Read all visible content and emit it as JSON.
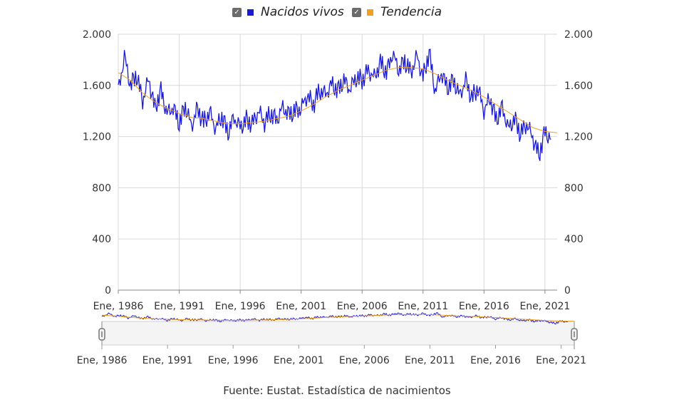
{
  "legend": {
    "series1": {
      "label": "Nacidos vivos",
      "color": "#1a1ad6",
      "checkbox": "✓"
    },
    "series2": {
      "label": "Tendencia",
      "color": "#f0a020",
      "checkbox": "✓"
    }
  },
  "source": "Fuente: Eustat. Estadística de nacimientos",
  "chart_data": {
    "type": "line",
    "title": "",
    "xlabel": "",
    "ylabel": "",
    "x_range": [
      1986.0,
      2022.0
    ],
    "ylim": [
      0,
      2000
    ],
    "y_ticks": [
      0,
      400,
      800,
      1200,
      1600,
      2000
    ],
    "y_tick_labels": [
      "0",
      "400",
      "800",
      "1.200",
      "1.600",
      "2.000"
    ],
    "x_ticks": [
      1986,
      1991,
      1996,
      2001,
      2006,
      2011,
      2016,
      2021
    ],
    "x_tick_labels": [
      "Ene, 1986",
      "Ene, 1991",
      "Ene, 1996",
      "Ene, 2001",
      "Ene, 2006",
      "Ene, 2011",
      "Ene, 2016",
      "Ene, 2021"
    ],
    "navigator_tick_labels": [
      "Ene, 1986",
      "Ene, 1991",
      "Ene, 1996",
      "Ene, 2001",
      "Ene, 2006",
      "Ene, 2011",
      "Ene, 2016",
      "Ene, 2021"
    ],
    "grid": true,
    "series": [
      {
        "name": "Nacidos vivos",
        "color": "#1a1ad6",
        "x": [
          1986.0,
          1986.5,
          1987.0,
          1987.5,
          1988.0,
          1988.5,
          1989.0,
          1989.5,
          1990.0,
          1990.5,
          1991.0,
          1991.5,
          1992.0,
          1992.5,
          1993.0,
          1993.5,
          1994.0,
          1994.5,
          1995.0,
          1995.5,
          1996.0,
          1996.5,
          1997.0,
          1997.5,
          1998.0,
          1998.5,
          1999.0,
          1999.5,
          2000.0,
          2000.5,
          2001.0,
          2001.5,
          2002.0,
          2002.5,
          2003.0,
          2003.5,
          2004.0,
          2004.5,
          2005.0,
          2005.5,
          2006.0,
          2006.5,
          2007.0,
          2007.5,
          2008.0,
          2008.5,
          2009.0,
          2009.5,
          2010.0,
          2010.5,
          2011.0,
          2011.5,
          2012.0,
          2012.5,
          2013.0,
          2013.5,
          2014.0,
          2014.5,
          2015.0,
          2015.5,
          2016.0,
          2016.5,
          2017.0,
          2017.5,
          2018.0,
          2018.5,
          2019.0,
          2019.5,
          2020.0,
          2020.5,
          2021.0,
          2021.5
        ],
        "values": [
          1550,
          1830,
          1600,
          1680,
          1480,
          1650,
          1420,
          1560,
          1380,
          1430,
          1300,
          1440,
          1280,
          1420,
          1310,
          1390,
          1260,
          1360,
          1230,
          1350,
          1270,
          1330,
          1300,
          1400,
          1310,
          1380,
          1330,
          1430,
          1370,
          1400,
          1420,
          1520,
          1450,
          1560,
          1530,
          1610,
          1560,
          1640,
          1570,
          1660,
          1640,
          1720,
          1660,
          1780,
          1700,
          1850,
          1720,
          1790,
          1700,
          1830,
          1660,
          1860,
          1550,
          1700,
          1580,
          1640,
          1520,
          1640,
          1500,
          1580,
          1400,
          1500,
          1330,
          1430,
          1260,
          1340,
          1220,
          1300,
          1190,
          1050,
          1240,
          1180
        ]
      },
      {
        "name": "Tendencia",
        "color": "#f0a020",
        "x": [
          1986,
          1987,
          1988,
          1989,
          1990,
          1991,
          1992,
          1993,
          1994,
          1995,
          1996,
          1997,
          1998,
          1999,
          2000,
          2001,
          2002,
          2003,
          2004,
          2005,
          2006,
          2007,
          2008,
          2009,
          2010,
          2011,
          2012,
          2013,
          2014,
          2015,
          2016,
          2017,
          2018,
          2019,
          2020,
          2021,
          2022
        ],
        "values": [
          1700,
          1640,
          1540,
          1470,
          1420,
          1380,
          1350,
          1340,
          1320,
          1300,
          1300,
          1310,
          1320,
          1340,
          1360,
          1400,
          1450,
          1510,
          1560,
          1600,
          1640,
          1680,
          1720,
          1740,
          1740,
          1730,
          1690,
          1640,
          1600,
          1560,
          1510,
          1450,
          1390,
          1330,
          1270,
          1240,
          1230
        ]
      }
    ]
  }
}
